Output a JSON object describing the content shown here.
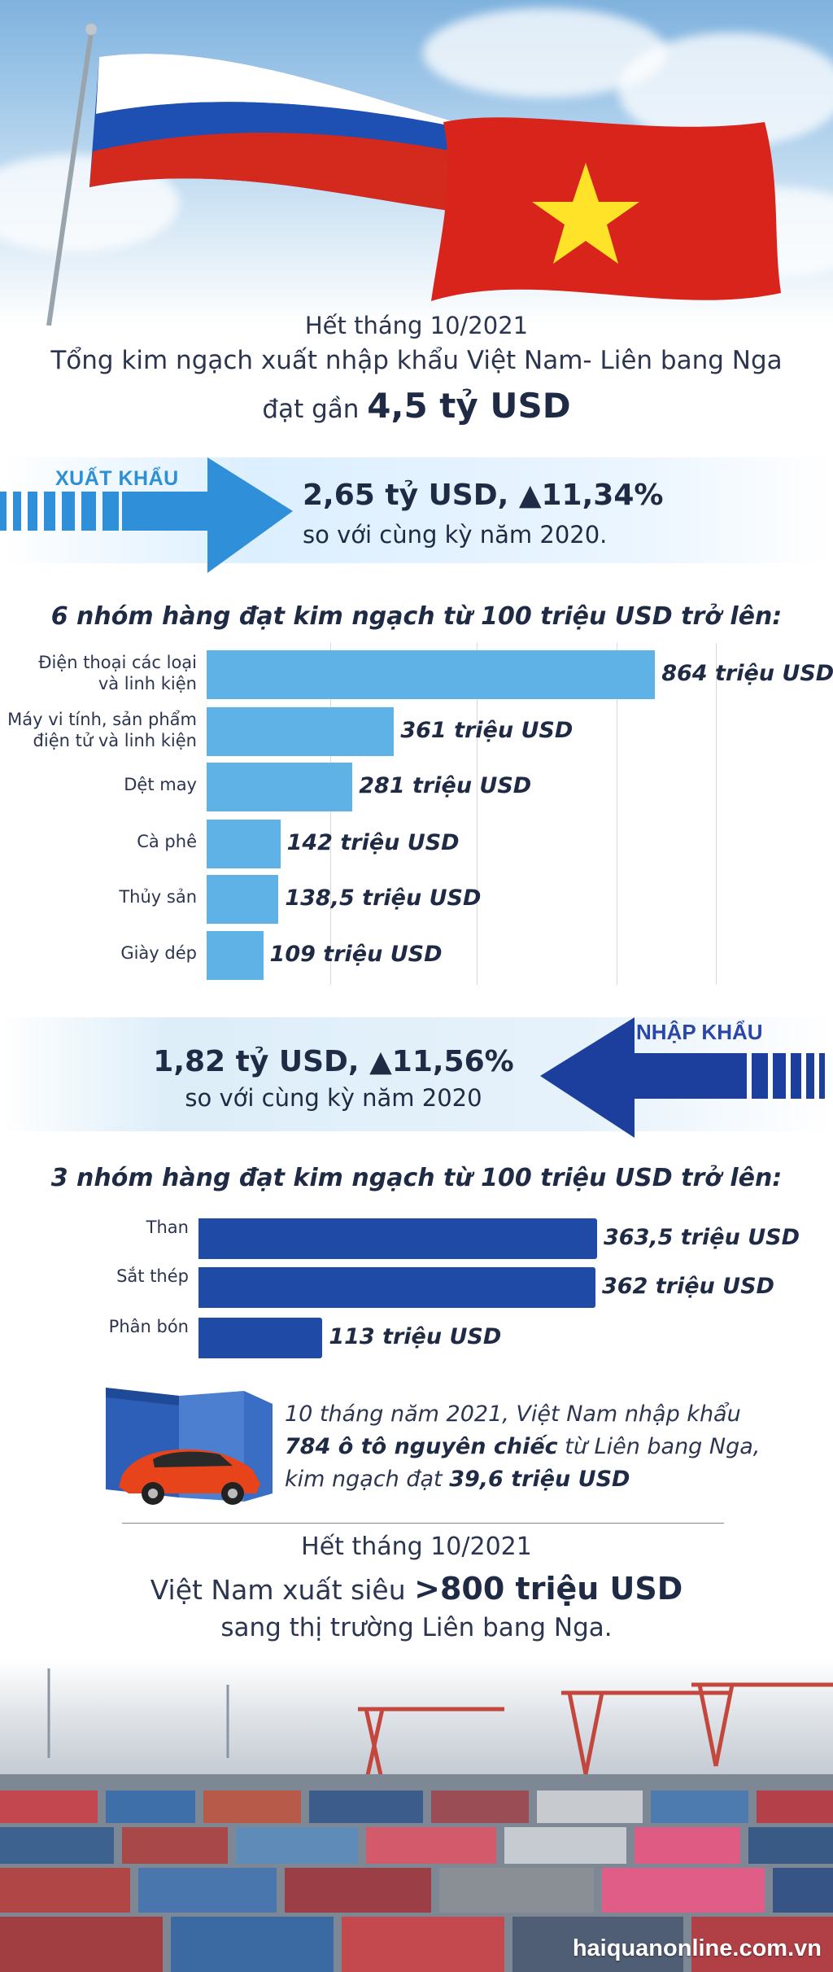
{
  "headline": {
    "line1": "Hết tháng 10/2021",
    "line2": "Tổng kim ngạch xuất nhập khẩu Việt Nam- Liên bang Nga",
    "line3_prefix": "đạt gần ",
    "line3_value": "4,5 tỷ USD"
  },
  "export": {
    "label": "XUẤT KHẨU",
    "value": "2,65 tỷ USD, ▲11,34%",
    "compare": "so với cùng kỳ năm 2020."
  },
  "import": {
    "label": "NHẬP KHẨU",
    "value": "1,82 tỷ USD, ▲11,56%",
    "compare": "so với cùng kỳ năm 2020"
  },
  "car_note": {
    "part1": "10 tháng năm 2021, Việt Nam nhập khẩu",
    "bold1": "784 ô tô nguyên chiếc",
    "part2": " từ Liên bang Nga,",
    "part3": "kim ngạch đạt ",
    "bold2": "39,6 triệu USD"
  },
  "summary": {
    "line1": "Hết tháng 10/2021",
    "line2_prefix": "Việt Nam xuất siêu ",
    "line2_value": ">800 triệu USD",
    "line3": "sang thị trường Liên bang Nga."
  },
  "site": "haiquanonline.com.vn",
  "colors": {
    "export_bar": "#5fb2e6",
    "import_bar": "#1f4aa6",
    "export_arrow": "#2f8fd8",
    "import_arrow": "#1c3f9e"
  },
  "chart_data": [
    {
      "type": "bar",
      "orientation": "horizontal",
      "title": "6 nhóm hàng đạt kim ngạch từ 100 triệu USD trở lên:",
      "categories": [
        "Điện thoại các loại\nvà linh kiện",
        "Máy vi tính, sản phẩm\nđiện tử và linh kiện",
        "Dệt may",
        "Cà phê",
        "Thủy sản",
        "Giày dép"
      ],
      "values": [
        864,
        361,
        281,
        142,
        138.5,
        109
      ],
      "value_labels": [
        "864 triệu USD",
        "361 triệu USD",
        "281 triệu USD",
        "142 triệu USD",
        "138,5 triệu USD",
        "109 triệu USD"
      ],
      "unit": "triệu USD",
      "xlim": [
        0,
        1000
      ],
      "grid": true
    },
    {
      "type": "bar",
      "orientation": "horizontal",
      "title": "3 nhóm hàng đạt kim ngạch từ 100 triệu USD trở lên:",
      "categories": [
        "Than",
        "Sắt thép",
        "Phân bón"
      ],
      "values": [
        363.5,
        362,
        113
      ],
      "value_labels": [
        "363,5 triệu USD",
        "362 triệu USD",
        "113 triệu USD"
      ],
      "unit": "triệu USD",
      "xlim": [
        0,
        363.5
      ],
      "grid": false
    }
  ]
}
